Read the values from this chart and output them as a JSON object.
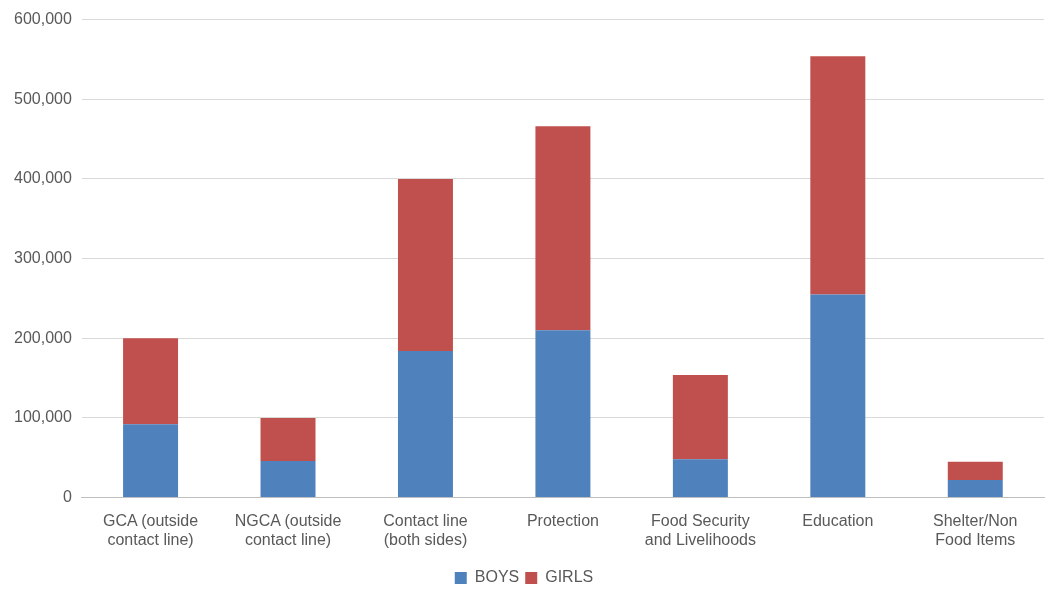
{
  "chart_data": {
    "type": "bar",
    "stacked": true,
    "categories": [
      "GCA (outside contact line)",
      "NGCA (outside contact line)",
      "Contact line (both sides)",
      "Protection",
      "Food Security and Livelihoods",
      "Education",
      "Shelter/Non Food Items"
    ],
    "series": [
      {
        "name": "BOYS",
        "color": "#4f81bd",
        "values": [
          92000,
          46000,
          184000,
          210000,
          48000,
          255000,
          22000
        ]
      },
      {
        "name": "GIRLS",
        "color": "#c0504d",
        "values": [
          108000,
          54000,
          216000,
          256000,
          106000,
          299000,
          23000
        ]
      }
    ],
    "ylim": [
      0,
      600000
    ],
    "yticks": [
      0,
      {
        "value": 100000,
        "label": "100,000"
      },
      {
        "value": 200000,
        "label": "200,000"
      },
      {
        "value": 300000,
        "label": "300,000"
      },
      {
        "value": 400000,
        "label": "400,000"
      },
      {
        "value": 500000,
        "label": "500,000"
      },
      {
        "value": 600000,
        "label": "600,000"
      }
    ],
    "grid": "y",
    "legend": "bottom"
  }
}
